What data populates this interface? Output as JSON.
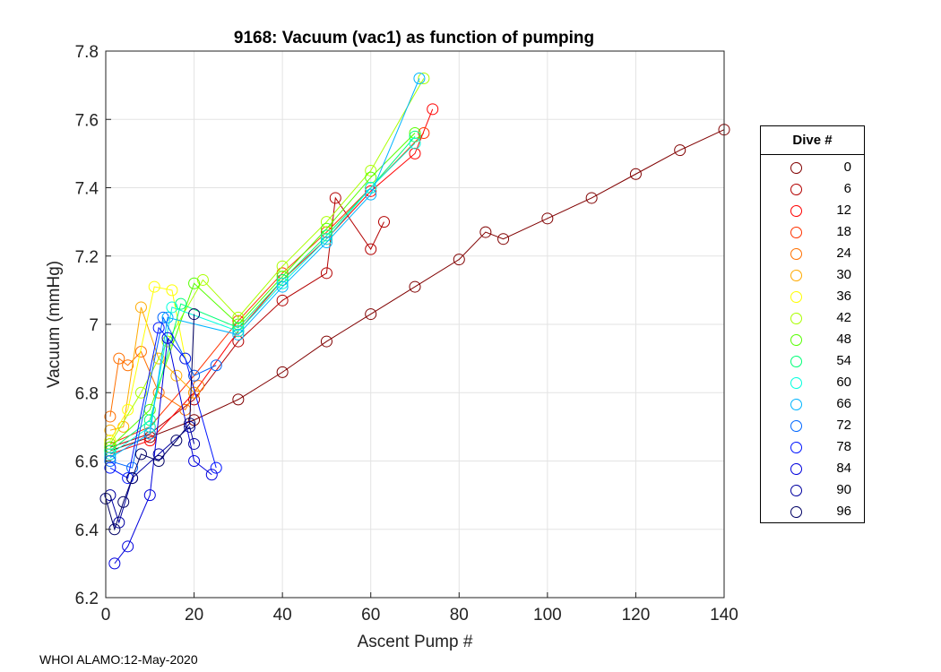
{
  "chart_data": {
    "type": "scatter",
    "title": "9168: Vacuum (vac1) as function of pumping",
    "xlabel": "Ascent Pump #",
    "ylabel": "Vacuum (mmHg)",
    "xlim": [
      0,
      140
    ],
    "ylim": [
      6.2,
      7.8
    ],
    "xticks": [
      0,
      20,
      40,
      60,
      80,
      100,
      120,
      140
    ],
    "yticks": [
      6.2,
      6.4,
      6.6,
      6.8,
      7.0,
      7.2,
      7.4,
      7.6,
      7.8
    ],
    "xtick_labels": [
      "0",
      "20",
      "40",
      "60",
      "80",
      "100",
      "120",
      "140"
    ],
    "ytick_labels": [
      "6.2",
      "6.4",
      "6.6",
      "6.8",
      "7",
      "7.2",
      "7.4",
      "7.6",
      "7.8"
    ],
    "grid": true,
    "legend_title": "Dive #",
    "legend_position": "outside-right",
    "series": [
      {
        "name": "0",
        "color": "#800000",
        "points": [
          [
            1,
            6.63
          ],
          [
            10,
            6.67
          ],
          [
            20,
            6.72
          ],
          [
            30,
            6.78
          ],
          [
            40,
            6.86
          ],
          [
            50,
            6.95
          ],
          [
            60,
            7.03
          ],
          [
            70,
            7.11
          ],
          [
            80,
            7.19
          ],
          [
            86,
            7.27
          ],
          [
            90,
            7.25
          ],
          [
            100,
            7.31
          ],
          [
            110,
            7.37
          ],
          [
            120,
            7.44
          ],
          [
            130,
            7.51
          ],
          [
            140,
            7.57
          ]
        ]
      },
      {
        "name": "6",
        "color": "#b30000",
        "points": [
          [
            1,
            6.64
          ],
          [
            10,
            6.68
          ],
          [
            20,
            6.78
          ],
          [
            30,
            6.95
          ],
          [
            40,
            7.07
          ],
          [
            50,
            7.15
          ],
          [
            52,
            7.37
          ],
          [
            60,
            7.22
          ],
          [
            63,
            7.3
          ]
        ]
      },
      {
        "name": "12",
        "color": "#ff0000",
        "points": [
          [
            1,
            6.62
          ],
          [
            10,
            6.66
          ],
          [
            20,
            6.8
          ],
          [
            30,
            6.98
          ],
          [
            40,
            7.13
          ],
          [
            50,
            7.25
          ],
          [
            60,
            7.39
          ],
          [
            70,
            7.5
          ],
          [
            74,
            7.63
          ]
        ]
      },
      {
        "name": "18",
        "color": "#ff3300",
        "points": [
          [
            1,
            6.65
          ],
          [
            10,
            6.7
          ],
          [
            20,
            6.85
          ],
          [
            30,
            7.01
          ],
          [
            40,
            7.15
          ],
          [
            50,
            7.27
          ],
          [
            60,
            7.4
          ],
          [
            72,
            7.56
          ]
        ]
      },
      {
        "name": "24",
        "color": "#ff7000",
        "points": [
          [
            1,
            6.73
          ],
          [
            3,
            6.9
          ],
          [
            5,
            6.88
          ],
          [
            8,
            6.92
          ],
          [
            12,
            6.8
          ],
          [
            18,
            6.75
          ],
          [
            21,
            6.82
          ]
        ]
      },
      {
        "name": "30",
        "color": "#ffaa00",
        "points": [
          [
            1,
            6.69
          ],
          [
            4,
            6.7
          ],
          [
            8,
            7.05
          ],
          [
            12,
            6.9
          ],
          [
            16,
            6.85
          ],
          [
            20,
            6.8
          ]
        ]
      },
      {
        "name": "36",
        "color": "#ffff00",
        "points": [
          [
            1,
            6.66
          ],
          [
            5,
            6.75
          ],
          [
            11,
            7.11
          ],
          [
            15,
            7.1
          ],
          [
            18,
            6.9
          ]
        ]
      },
      {
        "name": "42",
        "color": "#aaff00",
        "points": [
          [
            1,
            6.65
          ],
          [
            8,
            6.8
          ],
          [
            14,
            6.95
          ],
          [
            22,
            7.13
          ],
          [
            30,
            7.02
          ],
          [
            40,
            7.17
          ],
          [
            50,
            7.3
          ],
          [
            60,
            7.45
          ],
          [
            72,
            7.72
          ]
        ]
      },
      {
        "name": "48",
        "color": "#55ff00",
        "points": [
          [
            1,
            6.64
          ],
          [
            10,
            6.75
          ],
          [
            20,
            7.12
          ],
          [
            30,
            7.0
          ],
          [
            40,
            7.14
          ],
          [
            50,
            7.28
          ],
          [
            60,
            7.43
          ],
          [
            70,
            7.56
          ]
        ]
      },
      {
        "name": "54",
        "color": "#00ff77",
        "points": [
          [
            1,
            6.63
          ],
          [
            10,
            6.72
          ],
          [
            17,
            7.06
          ],
          [
            30,
            6.99
          ],
          [
            40,
            7.13
          ],
          [
            50,
            7.26
          ],
          [
            60,
            7.4
          ],
          [
            70,
            7.55
          ]
        ]
      },
      {
        "name": "60",
        "color": "#00ffdd",
        "points": [
          [
            1,
            6.62
          ],
          [
            10,
            6.7
          ],
          [
            15,
            7.05
          ],
          [
            30,
            6.98
          ],
          [
            40,
            7.12
          ],
          [
            50,
            7.25
          ],
          [
            60,
            7.4
          ],
          [
            70,
            7.53
          ]
        ]
      },
      {
        "name": "66",
        "color": "#00b4ff",
        "points": [
          [
            1,
            6.61
          ],
          [
            10,
            6.68
          ],
          [
            14,
            7.02
          ],
          [
            30,
            6.97
          ],
          [
            40,
            7.11
          ],
          [
            50,
            7.24
          ],
          [
            60,
            7.38
          ],
          [
            71,
            7.72
          ]
        ]
      },
      {
        "name": "72",
        "color": "#0066ff",
        "points": [
          [
            1,
            6.6
          ],
          [
            6,
            6.58
          ],
          [
            13,
            7.02
          ],
          [
            20,
            6.85
          ],
          [
            25,
            6.88
          ]
        ]
      },
      {
        "name": "78",
        "color": "#0015ff",
        "points": [
          [
            1,
            6.58
          ],
          [
            5,
            6.55
          ],
          [
            12,
            6.99
          ],
          [
            18,
            6.9
          ],
          [
            25,
            6.58
          ]
        ]
      },
      {
        "name": "84",
        "color": "#0000dd",
        "points": [
          [
            2,
            6.3
          ],
          [
            5,
            6.35
          ],
          [
            10,
            6.5
          ],
          [
            14,
            6.96
          ],
          [
            20,
            6.6
          ],
          [
            24,
            6.56
          ]
        ]
      },
      {
        "name": "90",
        "color": "#0000a0",
        "points": [
          [
            1,
            6.5
          ],
          [
            3,
            6.42
          ],
          [
            6,
            6.55
          ],
          [
            12,
            6.62
          ],
          [
            19,
            6.7
          ],
          [
            20,
            6.65
          ]
        ]
      },
      {
        "name": "96",
        "color": "#000064",
        "points": [
          [
            0,
            6.49
          ],
          [
            2,
            6.4
          ],
          [
            4,
            6.48
          ],
          [
            6,
            6.55
          ],
          [
            8,
            6.62
          ],
          [
            12,
            6.6
          ],
          [
            16,
            6.66
          ],
          [
            19,
            6.71
          ],
          [
            20,
            7.03
          ]
        ]
      }
    ]
  },
  "footer": {
    "text": "WHOI ALAMO:12-May-2020"
  }
}
